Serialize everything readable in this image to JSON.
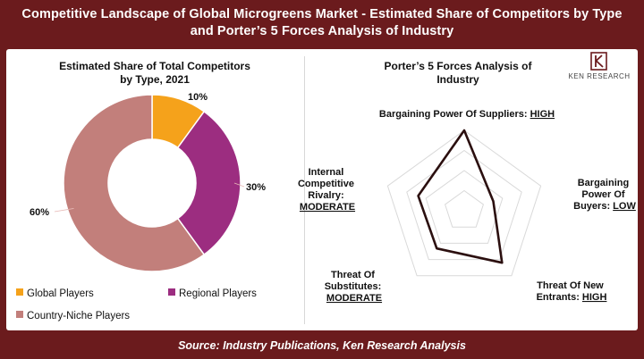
{
  "header": {
    "title_line1": "Competitive Landscape of Global Microgreens Market - Estimated Share of Competitors by Type",
    "title_line2": "and Porter’s 5 Forces Analysis of Industry"
  },
  "footer": {
    "source": "Source: Industry Publications, Ken Research Analysis"
  },
  "logo": {
    "text": "KEN RESEARCH",
    "icon": "ken-research-logo-icon"
  },
  "colors": {
    "frame": "#6b1b1d",
    "global": "#f5a21b",
    "regional": "#9c2d80",
    "country_niche": "#c27f7b",
    "radar_line": "#2b0f0f",
    "grid": "#d9d9d9"
  },
  "chart_data": [
    {
      "type": "pie",
      "donut": true,
      "title_line1": "Estimated Share of Total Competitors",
      "title_line2": "by Type, 2021",
      "categories": [
        "Global Players",
        "Regional Players",
        "Country-Niche Players"
      ],
      "values": [
        10,
        30,
        60
      ],
      "data_labels": [
        "10%",
        "30%",
        "60%"
      ],
      "legend_placement": "bottom"
    },
    {
      "type": "radar",
      "title_line1": "Porter’s 5 Forces Analysis of",
      "title_line2": "Industry",
      "axes": [
        {
          "lines": [
            "Bargaining Power Of Suppliers: "
          ],
          "level": "HIGH"
        },
        {
          "lines": [
            "Bargaining",
            "Power Of",
            "Buyers: "
          ],
          "level": "LOW"
        },
        {
          "lines": [
            "Threat Of New",
            "Entrants: "
          ],
          "level": "HIGH"
        },
        {
          "lines": [
            "Threat Of",
            "Substitutes:"
          ],
          "level": "MODERATE"
        },
        {
          "lines": [
            "Internal",
            "Competitive",
            "Rivalry:"
          ],
          "level": "MODERATE"
        }
      ],
      "values": [
        1.0,
        0.38,
        0.8,
        0.58,
        0.6
      ],
      "rmax": 1,
      "grid_rings": 4
    }
  ]
}
